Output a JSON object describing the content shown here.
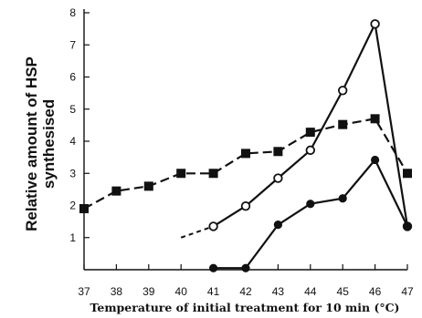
{
  "chart_data": {
    "type": "line",
    "xlabel": "Temperature of initial treatment for 10 min (°C)",
    "ylabel_lines": [
      "Relative amount of HSP",
      "synthesised"
    ],
    "x": [
      37,
      38,
      39,
      40,
      41,
      42,
      43,
      44,
      45,
      46,
      47
    ],
    "xlim": [
      37,
      47
    ],
    "ylim": [
      0,
      8
    ],
    "yticks": [
      1,
      2,
      3,
      4,
      5,
      6,
      7,
      8
    ],
    "grid": false,
    "series": [
      {
        "marker": "filled-square",
        "line_style": "dashed",
        "points": [
          [
            37,
            1.9
          ],
          [
            38,
            2.45
          ],
          [
            39,
            2.6
          ],
          [
            40,
            3.0
          ],
          [
            41,
            3.0
          ],
          [
            42,
            3.62
          ],
          [
            43,
            3.68
          ],
          [
            44,
            4.28
          ],
          [
            45,
            4.52
          ],
          [
            46,
            4.7
          ],
          [
            47,
            3.0
          ]
        ]
      },
      {
        "marker": "open-circle",
        "line_style": "solid",
        "lead_in_dashed_from": [
          40,
          1.0
        ],
        "points": [
          [
            41,
            1.35
          ],
          [
            42,
            1.98
          ],
          [
            43,
            2.85
          ],
          [
            44,
            3.72
          ],
          [
            45,
            5.58
          ],
          [
            46,
            7.65
          ],
          [
            47,
            1.35
          ]
        ]
      },
      {
        "marker": "filled-circle",
        "line_style": "solid",
        "points": [
          [
            41,
            0.05
          ],
          [
            42,
            0.05
          ],
          [
            43,
            1.4
          ],
          [
            44,
            2.05
          ],
          [
            45,
            2.22
          ],
          [
            46,
            3.42
          ],
          [
            47,
            1.35
          ]
        ]
      }
    ]
  }
}
